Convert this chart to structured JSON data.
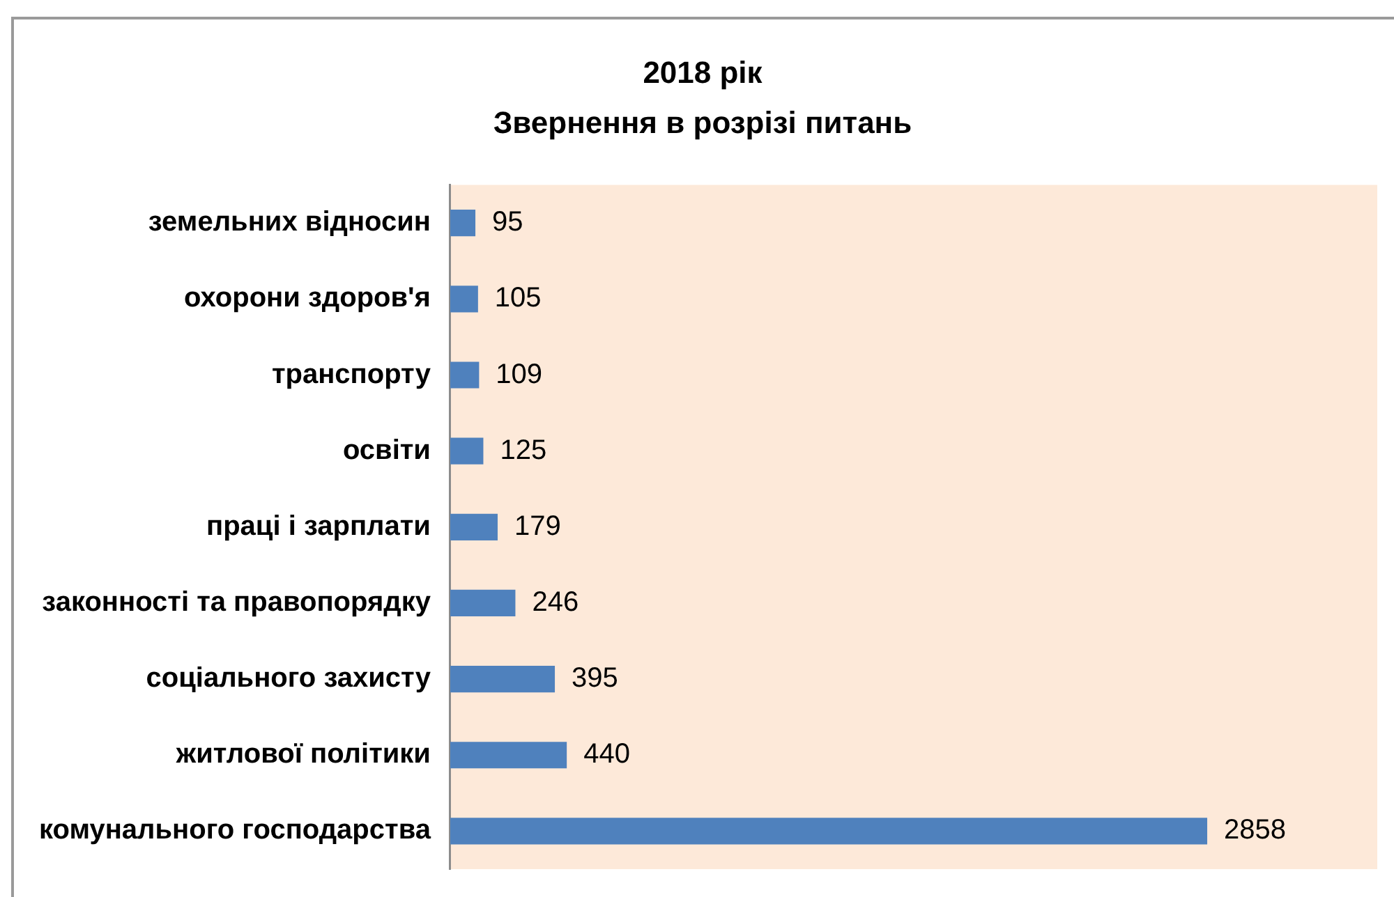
{
  "chart_data": {
    "type": "bar",
    "orientation": "horizontal",
    "title": "2018 рік",
    "subtitle": "Звернення в розрізі питань",
    "categories": [
      "земельних відносин",
      "охорони здоров'я",
      "транспорту",
      "освіти",
      "праці і зарплати",
      "законності та правопорядку",
      "соціального захисту",
      "житлової політики",
      "комунального господарства"
    ],
    "values": [
      95,
      105,
      109,
      125,
      179,
      246,
      395,
      440,
      2858
    ],
    "color": "#4f81bd",
    "xlim": [
      0,
      3500
    ],
    "data_labels": true,
    "grid": false,
    "legend": false,
    "tick_labels": "y"
  }
}
